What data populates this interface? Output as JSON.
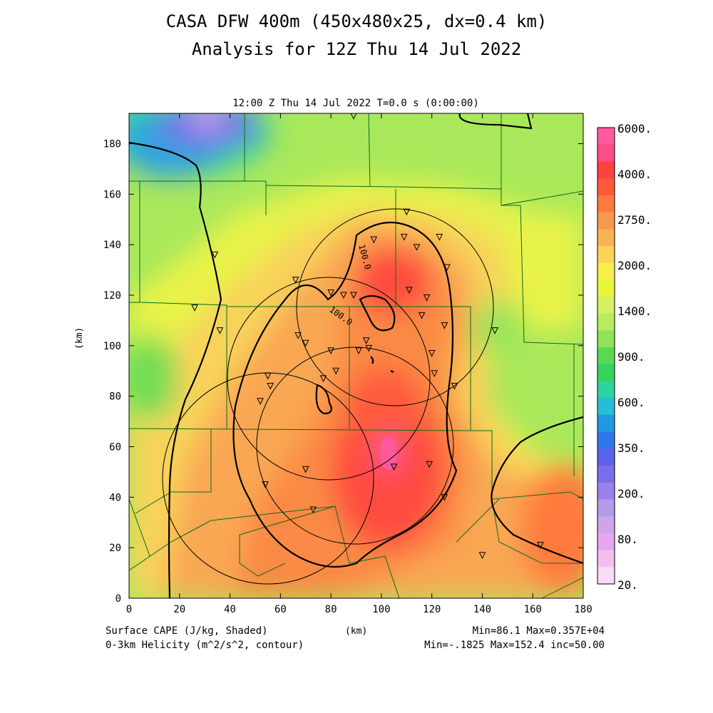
{
  "title_line1": "CASA DFW 400m (450x480x25, dx=0.4 km)",
  "title_line2": "Analysis for 12Z Thu 14 Jul 2022",
  "subtitle": "12:00 Z Thu 14 Jul 2022   T=0.0 s (0:00:00)",
  "y_axis_label": "(km)",
  "x_axis_units": "(km)",
  "footer": {
    "shaded_label": "Surface CAPE (J/kg, Shaded)",
    "contour_label": "0-3km Helicity (m^2/s^2, contour)",
    "shaded_stats": "Min=86.1 Max=0.357E+04",
    "contour_stats": "Min=-.1825 Max=152.4 inc=50.00"
  },
  "axes": {
    "x_ticks": [
      "0",
      "20",
      "40",
      "60",
      "80",
      "100",
      "120",
      "140",
      "160",
      "180"
    ],
    "y_ticks": [
      "0",
      "20",
      "40",
      "60",
      "80",
      "100",
      "120",
      "140",
      "160",
      "180"
    ],
    "x_range_km": [
      0,
      180
    ],
    "y_range_km": [
      0,
      192
    ]
  },
  "contour_labels": [
    "100.0",
    "100.0"
  ],
  "colorbar": {
    "labels": [
      "6000.",
      "4000.",
      "2750.",
      "2000.",
      "1400.",
      "900.",
      "600.",
      "350.",
      "200.",
      "80.",
      "20."
    ],
    "colors": [
      "#ff5aa0",
      "#ff4e86",
      "#ff4040",
      "#ff5a3a",
      "#ff7a3e",
      "#f59850",
      "#f9b355",
      "#fcd356",
      "#f7ee4a",
      "#e8f73a",
      "#d5f160",
      "#b7ec5f",
      "#8fe25a",
      "#59d854",
      "#33d35e",
      "#2dd3a3",
      "#26bdd6",
      "#1f99e0",
      "#2f78ec",
      "#5a63ea",
      "#7a6ee8",
      "#9a82ea",
      "#b49ae8",
      "#cfa4ea",
      "#e6a8ec",
      "#f2c0f0",
      "#fbd9f7"
    ]
  },
  "chart_data": {
    "type": "heatmap",
    "field": "Surface CAPE (J/kg)",
    "contour_field": "0-3km Helicity (m^2/s^2)",
    "x_range": [
      0,
      180
    ],
    "y_range": [
      0,
      192
    ],
    "shaded_min": 86.1,
    "shaded_max": 3570,
    "contour_min": -0.1825,
    "contour_max": 152.4,
    "contour_increment": 50.0,
    "colorbar_levels": [
      20,
      80,
      200,
      350,
      600,
      900,
      1400,
      2000,
      2750,
      4000,
      6000
    ],
    "radar_rings": [
      {
        "center_km": [
          38,
          47
        ],
        "radius_km": 42
      },
      {
        "center_km": [
          79,
          89
        ],
        "radius_km": 40
      },
      {
        "center_km": [
          96,
          63
        ],
        "radius_km": 39
      },
      {
        "center_km": [
          109,
          116
        ],
        "radius_km": 39
      }
    ],
    "station_markers_km": [
      [
        34,
        136
      ],
      [
        26,
        115
      ],
      [
        36,
        106
      ],
      [
        66,
        126
      ],
      [
        67,
        104
      ],
      [
        70,
        101
      ],
      [
        80,
        121
      ],
      [
        85,
        120
      ],
      [
        89,
        120
      ],
      [
        94,
        102
      ],
      [
        95,
        99
      ],
      [
        91,
        98
      ],
      [
        80,
        98
      ],
      [
        82,
        90
      ],
      [
        77,
        87
      ],
      [
        55,
        88
      ],
      [
        56,
        84
      ],
      [
        52,
        78
      ],
      [
        54,
        45
      ],
      [
        70,
        51
      ],
      [
        73,
        35
      ],
      [
        97,
        142
      ],
      [
        110,
        153
      ],
      [
        109,
        143
      ],
      [
        114,
        139
      ],
      [
        123,
        143
      ],
      [
        126,
        131
      ],
      [
        111,
        122
      ],
      [
        118,
        119
      ],
      [
        116,
        112
      ],
      [
        125,
        108
      ],
      [
        120,
        97
      ],
      [
        121,
        89
      ],
      [
        129,
        84
      ],
      [
        145,
        106
      ],
      [
        105,
        52
      ],
      [
        119,
        53
      ],
      [
        125,
        40
      ],
      [
        140,
        17
      ],
      [
        163,
        21
      ],
      [
        89,
        191
      ]
    ]
  }
}
